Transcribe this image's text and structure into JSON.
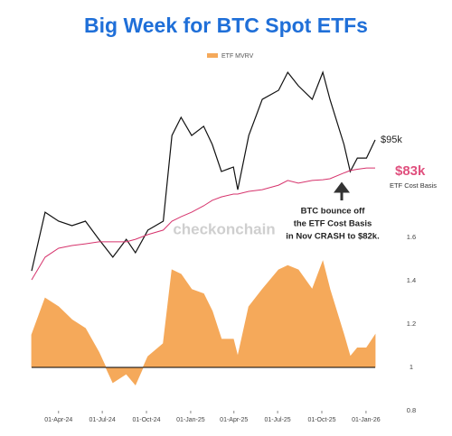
{
  "chart_data": [
    {
      "type": "line",
      "title": "Big Week for BTC Spot ETFs",
      "x": [
        "2024-02-05",
        "2024-03-04",
        "2024-04-01",
        "2024-04-29",
        "2024-05-27",
        "2024-06-24",
        "2024-07-23",
        "2024-08-20",
        "2024-09-08",
        "2024-10-04",
        "2024-11-05",
        "2024-11-23",
        "2024-12-12",
        "2025-01-03",
        "2025-01-28",
        "2025-02-15",
        "2025-03-06",
        "2025-03-31",
        "2025-04-09",
        "2025-05-02",
        "2025-05-30",
        "2025-07-03",
        "2025-07-22",
        "2025-08-13",
        "2025-09-11",
        "2025-10-03",
        "2025-10-18",
        "2025-11-16",
        "2025-11-29",
        "2025-12-14",
        "2026-01-02",
        "2026-01-20"
      ],
      "xlim": [
        "2024-02-05",
        "2026-01-20"
      ],
      "ylim": [
        38000,
        127000
      ],
      "series": [
        {
          "name": "BTC",
          "color": "#111111",
          "values": [
            41600,
            65200,
            61600,
            59800,
            61600,
            54300,
            47100,
            54300,
            48900,
            58000,
            61600,
            96100,
            103400,
            96100,
            99800,
            92500,
            81600,
            83400,
            74300,
            96100,
            110600,
            114300,
            121500,
            116100,
            110600,
            121500,
            110600,
            92500,
            81600,
            87000,
            87000,
            94300
          ]
        },
        {
          "name": "ETF Cost Basis",
          "color": "#d6336c",
          "values": [
            38000,
            47100,
            50700,
            51800,
            52500,
            53300,
            53300,
            53300,
            54300,
            56200,
            58000,
            61600,
            63400,
            65200,
            67800,
            70000,
            71400,
            72500,
            72500,
            73600,
            74300,
            76100,
            78000,
            76900,
            78000,
            78300,
            78700,
            81000,
            82000,
            82500,
            83000,
            83000
          ]
        }
      ],
      "price_label": "$95k",
      "cost_label": "$83k",
      "cost_caption": "ETF Cost Basis",
      "annotation": [
        "BTC bounce off",
        "the ETF Cost Basis",
        "in Nov CRASH to $82k."
      ],
      "watermark": "checkonchain"
    },
    {
      "type": "area",
      "legend": "ETF MVRV",
      "x": [
        "2024-02-05",
        "2024-03-04",
        "2024-04-01",
        "2024-04-29",
        "2024-05-27",
        "2024-06-24",
        "2024-07-23",
        "2024-08-20",
        "2024-09-08",
        "2024-10-04",
        "2024-11-05",
        "2024-11-23",
        "2024-12-12",
        "2025-01-03",
        "2025-01-28",
        "2025-02-15",
        "2025-03-06",
        "2025-03-31",
        "2025-04-09",
        "2025-05-02",
        "2025-05-30",
        "2025-07-03",
        "2025-07-22",
        "2025-08-13",
        "2025-09-11",
        "2025-10-03",
        "2025-10-18",
        "2025-11-16",
        "2025-11-29",
        "2025-12-14",
        "2026-01-02",
        "2026-01-20"
      ],
      "xlim": [
        "2024-02-05",
        "2026-01-20"
      ],
      "xticks": [
        {
          "value": "2024-04-01",
          "label": "01-Apr-24"
        },
        {
          "value": "2024-07-01",
          "label": "01-Jul-24"
        },
        {
          "value": "2024-10-01",
          "label": "01-Oct-24"
        },
        {
          "value": "2025-01-01",
          "label": "01-Jan-25"
        },
        {
          "value": "2025-04-01",
          "label": "01-Apr-25"
        },
        {
          "value": "2025-07-01",
          "label": "01-Jul-25"
        },
        {
          "value": "2025-10-01",
          "label": "01-Oct-25"
        },
        {
          "value": "2026-01-01",
          "label": "01-Jan-26"
        }
      ],
      "ylim": [
        0.8,
        1.6
      ],
      "yticks": [
        0.8,
        1,
        1.2,
        1.4,
        1.6
      ],
      "series": [
        {
          "name": "ETF MVRV",
          "color": "#f5a95a",
          "values": [
            1.15,
            1.32,
            1.28,
            1.22,
            1.18,
            1.07,
            0.93,
            0.97,
            0.92,
            1.05,
            1.11,
            1.45,
            1.43,
            1.36,
            1.34,
            1.26,
            1.13,
            1.13,
            1.05,
            1.28,
            1.36,
            1.45,
            1.47,
            1.45,
            1.36,
            1.49,
            1.36,
            1.15,
            1.05,
            1.09,
            1.09,
            1.15
          ]
        }
      ]
    }
  ]
}
